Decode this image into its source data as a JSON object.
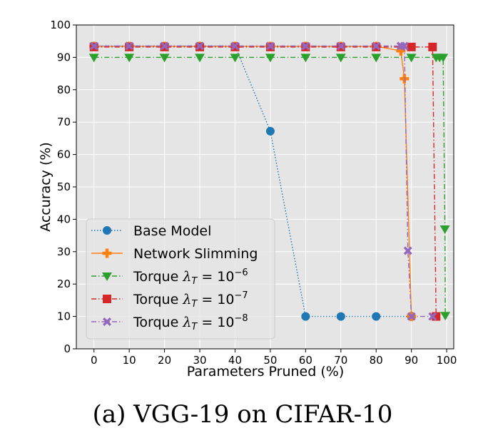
{
  "chart_data": {
    "type": "line",
    "title": "",
    "caption": "(a) VGG-19 on CIFAR-10",
    "xlabel": "Parameters Pruned (%)",
    "ylabel": "Accuracy (%)",
    "xlim": [
      -5,
      102
    ],
    "ylim": [
      0,
      100
    ],
    "xticks": [
      0,
      10,
      20,
      30,
      40,
      50,
      60,
      70,
      80,
      90,
      100
    ],
    "yticks": [
      0,
      10,
      20,
      30,
      40,
      50,
      60,
      70,
      80,
      90,
      100
    ],
    "grid": true,
    "legend_position": "bottom-left",
    "series": [
      {
        "name": "Base Model",
        "legend_parts": [
          "Base Model"
        ],
        "color": "#1f77b4",
        "marker": "circle",
        "linestyle": "dotted",
        "x": [
          0,
          10,
          20,
          30,
          40,
          50,
          60,
          70,
          80,
          90
        ],
        "y": [
          93.5,
          93.5,
          93.5,
          93.5,
          93.5,
          67.2,
          10,
          10,
          10,
          10
        ]
      },
      {
        "name": "Network Slimming",
        "legend_parts": [
          "Network Slimming"
        ],
        "color": "#ff7f0e",
        "marker": "plus",
        "linestyle": "solid",
        "x": [
          0,
          10,
          20,
          30,
          40,
          50,
          60,
          70,
          80,
          87,
          88,
          90
        ],
        "y": [
          93.4,
          93.4,
          93.4,
          93.4,
          93.4,
          93.4,
          93.4,
          93.4,
          93.4,
          92,
          83.4,
          10
        ]
      },
      {
        "name": "Torque λT = 10^-6",
        "legend_parts": [
          "Torque ",
          "λ",
          "T",
          " = 10",
          "−6"
        ],
        "color": "#2ca02c",
        "marker": "triangle-down",
        "linestyle": "dashdot",
        "x": [
          0,
          10,
          20,
          30,
          40,
          50,
          60,
          70,
          80,
          90,
          97,
          98,
          99,
          99.5,
          99.6
        ],
        "y": [
          90,
          90,
          90,
          90,
          90,
          90,
          90,
          90,
          90,
          90,
          90,
          90,
          90,
          37,
          10.3
        ]
      },
      {
        "name": "Torque λT = 10^-7",
        "legend_parts": [
          "Torque ",
          "λ",
          "T",
          " = 10",
          "−7"
        ],
        "color": "#d62728",
        "marker": "square",
        "linestyle": "dashdot",
        "x": [
          0,
          10,
          20,
          30,
          40,
          50,
          60,
          70,
          80,
          90,
          96,
          97
        ],
        "y": [
          93.2,
          93.2,
          93.2,
          93.2,
          93.2,
          93.2,
          93.2,
          93.2,
          93.2,
          93.2,
          93.2,
          10
        ]
      },
      {
        "name": "Torque λT = 10^-8",
        "legend_parts": [
          "Torque ",
          "λ",
          "T",
          " = 10",
          "−8"
        ],
        "color": "#9467bd",
        "marker": "x",
        "linestyle": "dashdot",
        "x": [
          0,
          10,
          20,
          30,
          40,
          50,
          60,
          70,
          80,
          87,
          88,
          89,
          90,
          96
        ],
        "y": [
          93.5,
          93.5,
          93.5,
          93.5,
          93.5,
          93.5,
          93.5,
          93.5,
          93.5,
          93.5,
          93.5,
          30.3,
          10,
          10
        ]
      }
    ]
  }
}
